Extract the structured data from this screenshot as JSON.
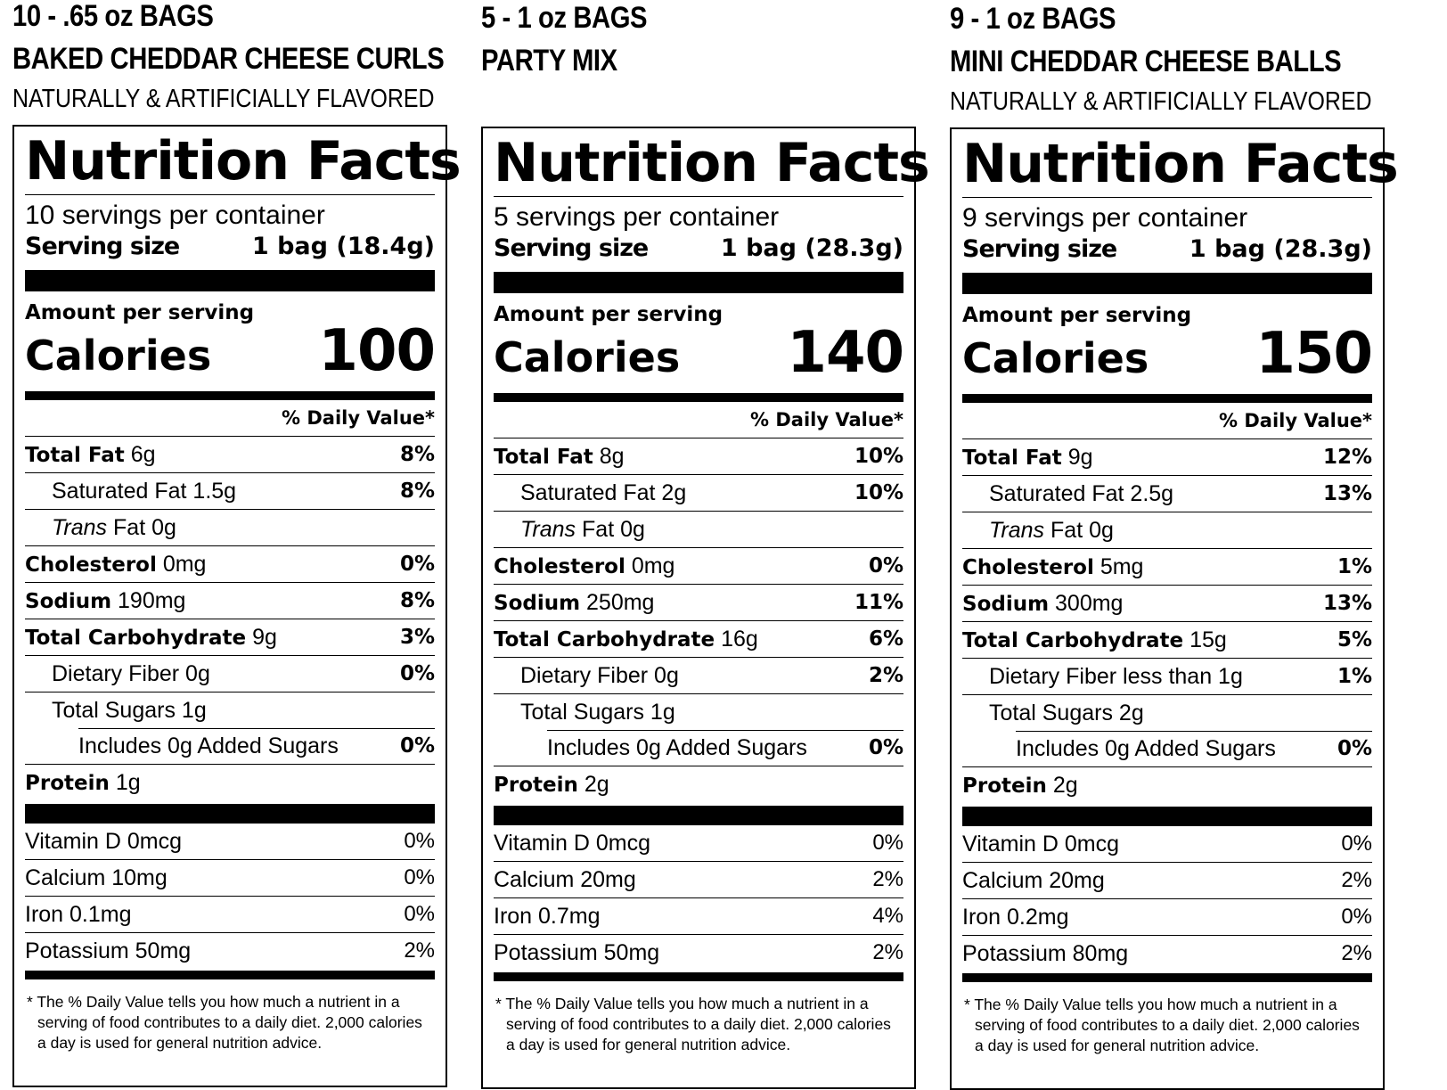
{
  "labels": [
    {
      "header": {
        "line1": "10 - .65 oz BAGS",
        "line2": "BAKED CHEDDAR CHEESE CURLS",
        "line3": "NATURALLY & ARTIFICIALLY FLAVORED"
      },
      "title": "Nutrition Facts",
      "servings": "10 servings per container",
      "serving_size_label": "Serving size",
      "serving_size_value": "1 bag (18.4g)",
      "amount_label": "Amount per serving",
      "calories_label": "Calories",
      "calories_value": "100",
      "dv_header": "% Daily Value*",
      "total_fat": {
        "label": "Total Fat",
        "amount": "6g",
        "dv": "8%"
      },
      "sat_fat": {
        "label": "Saturated Fat 1.5g",
        "dv": "8%"
      },
      "trans_fat": {
        "label_italic": "Trans",
        "label_rest": "Fat 0g"
      },
      "cholesterol": {
        "label": "Cholesterol",
        "amount": "0mg",
        "dv": "0%"
      },
      "sodium": {
        "label": "Sodium",
        "amount": "190mg",
        "dv": "8%"
      },
      "total_carb": {
        "label": "Total Carbohydrate",
        "amount": "9g",
        "dv": "3%"
      },
      "fiber": {
        "label": "Dietary Fiber 0g",
        "dv": "0%"
      },
      "sugars": {
        "label": "Total Sugars 1g"
      },
      "added_sugars": {
        "label": "Includes 0g Added Sugars",
        "dv": "0%"
      },
      "protein": {
        "label": "Protein",
        "amount": "1g"
      },
      "vitamin_d": {
        "label": "Vitamin D 0mcg",
        "dv": "0%"
      },
      "calcium": {
        "label": "Calcium 10mg",
        "dv": "0%"
      },
      "iron": {
        "label": "Iron 0.1mg",
        "dv": "0%"
      },
      "potassium": {
        "label": "Potassium 50mg",
        "dv": "2%"
      },
      "footnote": {
        "line1": "* The % Daily Value tells you how much a nutrient in a",
        "line2": "serving of food contributes to a daily diet. 2,000 calories",
        "line3": "a day is used for general nutrition advice."
      }
    },
    {
      "header": {
        "line1": "5 - 1 oz BAGS",
        "line2": "PARTY MIX",
        "line3": ""
      },
      "title": "Nutrition Facts",
      "servings": "5 servings per container",
      "serving_size_label": "Serving size",
      "serving_size_value": "1 bag (28.3g)",
      "amount_label": "Amount per serving",
      "calories_label": "Calories",
      "calories_value": "140",
      "dv_header": "% Daily Value*",
      "total_fat": {
        "label": "Total Fat",
        "amount": "8g",
        "dv": "10%"
      },
      "sat_fat": {
        "label": "Saturated Fat 2g",
        "dv": "10%"
      },
      "trans_fat": {
        "label_italic": "Trans",
        "label_rest": "Fat 0g"
      },
      "cholesterol": {
        "label": "Cholesterol",
        "amount": "0mg",
        "dv": "0%"
      },
      "sodium": {
        "label": "Sodium",
        "amount": "250mg",
        "dv": "11%"
      },
      "total_carb": {
        "label": "Total Carbohydrate",
        "amount": "16g",
        "dv": "6%"
      },
      "fiber": {
        "label": "Dietary Fiber 0g",
        "dv": "2%"
      },
      "sugars": {
        "label": "Total Sugars 1g"
      },
      "added_sugars": {
        "label": "Includes 0g Added Sugars",
        "dv": "0%"
      },
      "protein": {
        "label": "Protein",
        "amount": "2g"
      },
      "vitamin_d": {
        "label": "Vitamin D 0mcg",
        "dv": "0%"
      },
      "calcium": {
        "label": "Calcium 20mg",
        "dv": "2%"
      },
      "iron": {
        "label": "Iron 0.7mg",
        "dv": "4%"
      },
      "potassium": {
        "label": "Potassium 50mg",
        "dv": "2%"
      },
      "footnote": {
        "line1": "* The % Daily Value tells you how much a nutrient in a",
        "line2": "serving of food contributes to a daily diet. 2,000 calories",
        "line3": "a day is used for general nutrition advice."
      }
    },
    {
      "header": {
        "line1": "9 - 1 oz BAGS",
        "line2": "MINI CHEDDAR CHEESE BALLS",
        "line3": "NATURALLY & ARTIFICIALLY FLAVORED"
      },
      "title": "Nutrition Facts",
      "servings": "9 servings per container",
      "serving_size_label": "Serving size",
      "serving_size_value": "1 bag (28.3g)",
      "amount_label": "Amount per serving",
      "calories_label": "Calories",
      "calories_value": "150",
      "dv_header": "% Daily Value*",
      "total_fat": {
        "label": "Total Fat",
        "amount": "9g",
        "dv": "12%"
      },
      "sat_fat": {
        "label": "Saturated Fat 2.5g",
        "dv": "13%"
      },
      "trans_fat": {
        "label_italic": "Trans",
        "label_rest": "Fat 0g"
      },
      "cholesterol": {
        "label": "Cholesterol",
        "amount": "5mg",
        "dv": "1%"
      },
      "sodium": {
        "label": "Sodium",
        "amount": "300mg",
        "dv": "13%"
      },
      "total_carb": {
        "label": "Total Carbohydrate",
        "amount": "15g",
        "dv": "5%"
      },
      "fiber": {
        "label": "Dietary Fiber less than 1g",
        "dv": "1%"
      },
      "sugars": {
        "label": "Total Sugars 2g"
      },
      "added_sugars": {
        "label": "Includes 0g Added Sugars",
        "dv": "0%"
      },
      "protein": {
        "label": "Protein",
        "amount": "2g"
      },
      "vitamin_d": {
        "label": "Vitamin D 0mcg",
        "dv": "0%"
      },
      "calcium": {
        "label": "Calcium 20mg",
        "dv": "2%"
      },
      "iron": {
        "label": "Iron 0.2mg",
        "dv": "0%"
      },
      "potassium": {
        "label": "Potassium 80mg",
        "dv": "2%"
      },
      "footnote": {
        "line1": "* The % Daily Value tells you how much a nutrient in a",
        "line2": "serving of food contributes to a daily diet. 2,000 calories",
        "line3": "a day is used for general nutrition advice."
      }
    }
  ]
}
